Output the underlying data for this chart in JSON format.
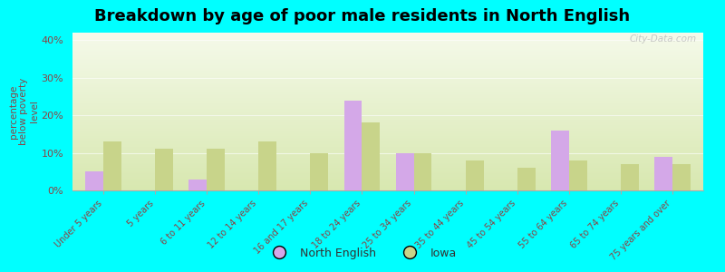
{
  "title": "Breakdown by age of poor male residents in North English",
  "categories": [
    "Under 5 years",
    "5 years",
    "6 to 11 years",
    "12 to 14 years",
    "16 and 17 years",
    "18 to 24 years",
    "25 to 34 years",
    "35 to 44 years",
    "45 to 54 years",
    "55 to 64 years",
    "65 to 74 years",
    "75 years and over"
  ],
  "north_english": [
    5,
    0,
    3,
    0,
    0,
    24,
    10,
    0,
    0,
    16,
    0,
    9
  ],
  "iowa": [
    13,
    11,
    11,
    13,
    10,
    18,
    10,
    8,
    6,
    8,
    7,
    7
  ],
  "north_english_color": "#d4a8e8",
  "iowa_color": "#c8d48a",
  "background_color": "#00ffff",
  "plot_bg_color": "#f0f5e0",
  "ylabel": "percentage\nbelow poverty\nlevel",
  "ylim": [
    0,
    42
  ],
  "yticks": [
    0,
    10,
    20,
    30,
    40
  ],
  "ytick_labels": [
    "0%",
    "10%",
    "20%",
    "30%",
    "40%"
  ],
  "title_fontsize": 13,
  "axis_label_color": "#8b4444",
  "tick_label_color": "#8b4444",
  "watermark": "City-Data.com",
  "legend_labels": [
    "North English",
    "Iowa"
  ]
}
